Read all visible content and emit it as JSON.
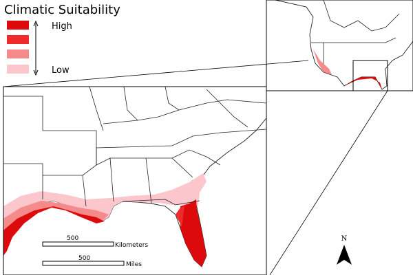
{
  "title": "Climatic Suitability",
  "legend": {
    "high": "High",
    "low": "Low",
    "colors": [
      "#dc0a0a",
      "#f02a2a",
      "#f58a8a",
      "#fbc6cc"
    ]
  },
  "scale_bars": [
    {
      "value": "500",
      "unit": "Kilometers"
    },
    {
      "value": "500",
      "unit": "Miles"
    }
  ],
  "north": "N"
}
